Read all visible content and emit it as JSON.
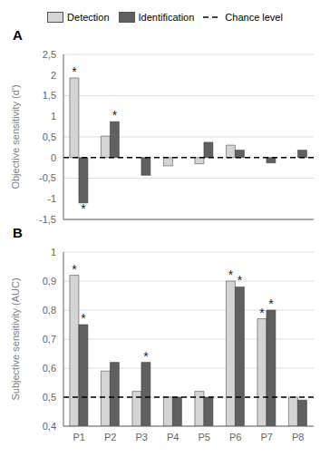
{
  "chart_data": [
    {
      "type": "bar",
      "title": "A",
      "categories": [
        null,
        null,
        null,
        null,
        null,
        null,
        null,
        null
      ],
      "ylabel": "Objective sensitivity (d')",
      "series": [
        {
          "name": "Detection",
          "color": "#d4d4d4",
          "values": [
            1.93,
            0.52,
            0.0,
            -0.2,
            -0.15,
            0.3,
            0.0,
            0.0
          ],
          "annotations": [
            "*",
            null,
            null,
            null,
            null,
            null,
            null,
            null
          ]
        },
        {
          "name": "Identification",
          "color": "#606060",
          "values": [
            -1.1,
            0.87,
            -0.43,
            0.0,
            0.37,
            0.18,
            -0.13,
            0.18
          ],
          "annotations": [
            "*",
            "*",
            null,
            null,
            null,
            null,
            null,
            null
          ]
        }
      ],
      "reference_lines": [
        {
          "name": "Chance level",
          "value": 0.0,
          "color": "#000000",
          "line_style": "dashed"
        }
      ],
      "ylim": [
        -1.5,
        2.5
      ],
      "yticks": [
        {
          "value": -1.5,
          "label": "-1,5"
        },
        -1,
        {
          "value": -0.5,
          "label": "-0,5"
        },
        0,
        {
          "value": 0.5,
          "label": "0,5"
        },
        1,
        {
          "value": 1.5,
          "label": "1,5"
        },
        2,
        {
          "value": 2.5,
          "label": "2,5"
        }
      ],
      "grid": true,
      "legend": "top"
    },
    {
      "type": "bar",
      "title": "B",
      "categories": [
        "P1",
        "P2",
        "P3",
        "P4",
        "P5",
        "P6",
        "P7",
        "P8"
      ],
      "ylabel": "Subjective sensitivity (AUC)",
      "series": [
        {
          "name": "Detection",
          "color": "#d4d4d4",
          "values": [
            0.92,
            0.59,
            0.52,
            0.5,
            0.52,
            0.9,
            0.77,
            0.5
          ],
          "annotations": [
            "*",
            null,
            null,
            null,
            null,
            "*",
            "*",
            null
          ]
        },
        {
          "name": "Identification",
          "color": "#606060",
          "values": [
            0.75,
            0.62,
            0.62,
            0.5,
            0.5,
            0.88,
            0.8,
            0.49
          ],
          "annotations": [
            "*",
            null,
            "*",
            null,
            null,
            "*",
            "*",
            null
          ]
        }
      ],
      "reference_lines": [
        {
          "value": 0.5,
          "color": "#000000",
          "line_style": "dashed"
        }
      ],
      "ylim": [
        0.4,
        1.0
      ],
      "yticks": [
        {
          "value": 0.4,
          "label": "0,4"
        },
        {
          "value": 0.5,
          "label": "0,5"
        },
        {
          "value": 0.6,
          "label": "0,6"
        },
        {
          "value": 0.7,
          "label": "0,7"
        },
        {
          "value": 0.8,
          "label": "0,8"
        },
        {
          "value": 0.9,
          "label": "0,9"
        },
        1
      ],
      "grid": true
    }
  ]
}
